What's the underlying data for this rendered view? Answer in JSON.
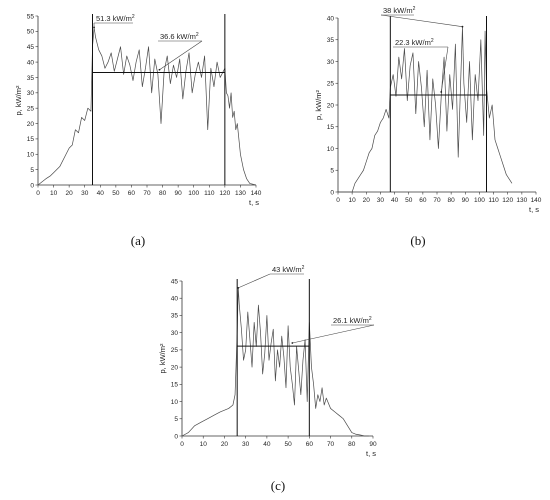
{
  "chart_data": [
    {
      "type": "line",
      "panel_label": "(a)",
      "xlabel": "t, s",
      "ylabel": "p, kW/m²",
      "xlim": [
        0,
        140
      ],
      "ylim": [
        0,
        55
      ],
      "xticks": [
        0,
        10,
        20,
        30,
        40,
        50,
        60,
        70,
        80,
        90,
        100,
        110,
        120,
        130,
        140
      ],
      "yticks": [
        0,
        5,
        10,
        15,
        20,
        25,
        30,
        35,
        40,
        45,
        50,
        55
      ],
      "window": [
        35,
        120
      ],
      "mean": 36.6,
      "annotations": [
        {
          "text": "51.3 kW/m",
          "sup": "2",
          "points_to": [
            36,
            51.3
          ]
        },
        {
          "text": "36.6 kW/m",
          "sup": "2",
          "points_to": [
            78,
            37.5
          ]
        }
      ],
      "series": [
        {
          "x": [
            0,
            5,
            8,
            10,
            14,
            18,
            20,
            22,
            24,
            26,
            28,
            30,
            32,
            34,
            35,
            36,
            37,
            39,
            41,
            43,
            45,
            47,
            49,
            51,
            53,
            55,
            57,
            59,
            61,
            63,
            65,
            67,
            69,
            71,
            73,
            75,
            77,
            79,
            81,
            83,
            85,
            87,
            89,
            91,
            93,
            95,
            97,
            99,
            101,
            103,
            105,
            107,
            109,
            111,
            113,
            115,
            117,
            119,
            120,
            121,
            122,
            123,
            124,
            125,
            126,
            127,
            128,
            130,
            132,
            134,
            136,
            140
          ],
          "y": [
            0,
            2,
            3,
            4,
            6,
            10,
            12,
            13,
            18,
            17,
            22,
            21,
            25,
            24,
            45,
            51.3,
            48,
            44,
            42,
            38,
            40,
            43,
            37,
            41,
            45,
            36,
            42,
            39,
            34,
            40,
            44,
            32,
            38,
            45,
            30,
            41,
            36,
            20,
            37,
            42,
            33,
            39,
            35,
            41,
            28,
            37,
            43,
            30,
            36,
            40,
            35,
            42,
            18,
            38,
            32,
            40,
            35,
            37,
            38,
            30,
            29,
            25,
            30,
            22,
            24,
            18,
            20,
            10,
            5,
            2,
            0.5,
            0
          ]
        }
      ]
    },
    {
      "type": "line",
      "panel_label": "(b)",
      "xlabel": "t, s",
      "ylabel": "p, kW/m²",
      "xlim": [
        0,
        140
      ],
      "ylim": [
        0,
        40
      ],
      "xticks": [
        0,
        10,
        20,
        30,
        40,
        50,
        60,
        70,
        80,
        90,
        100,
        110,
        120,
        130,
        140
      ],
      "yticks": [
        0,
        5,
        10,
        15,
        20,
        25,
        30,
        35,
        40
      ],
      "window": [
        37,
        105
      ],
      "mean": 22.3,
      "annotations": [
        {
          "text": "38 kW/m",
          "sup": "2",
          "points_to": [
            88,
            38
          ]
        },
        {
          "text": "22.3 kW/m",
          "sup": "2",
          "points_to": [
            73,
            23
          ]
        }
      ],
      "series": [
        {
          "x": [
            0,
            3,
            6,
            9,
            10,
            12,
            14,
            16,
            18,
            20,
            22,
            24,
            26,
            28,
            30,
            32,
            34,
            36,
            37,
            39,
            41,
            43,
            45,
            47,
            49,
            51,
            53,
            55,
            57,
            59,
            61,
            63,
            65,
            67,
            69,
            71,
            73,
            75,
            77,
            79,
            81,
            83,
            85,
            87,
            88,
            89,
            91,
            93,
            95,
            97,
            99,
            101,
            103,
            104,
            105,
            107,
            109,
            111,
            113,
            115,
            117,
            119,
            121,
            123
          ],
          "y": [
            0,
            0,
            0,
            0,
            0,
            2,
            3,
            4,
            5,
            7,
            9,
            10,
            13,
            14,
            16,
            17,
            19,
            17,
            24,
            27,
            22,
            31,
            26,
            33,
            21,
            29,
            32,
            18,
            30,
            24,
            15,
            28,
            12,
            26,
            20,
            10,
            22,
            31,
            14,
            27,
            19,
            34,
            8,
            28,
            38,
            25,
            16,
            30,
            12,
            27,
            21,
            35,
            13,
            37,
            24,
            17,
            20,
            12,
            10,
            8,
            6,
            4,
            3,
            2
          ]
        }
      ]
    },
    {
      "type": "line",
      "panel_label": "(c)",
      "xlabel": "t, s",
      "ylabel": "p, kW/m²",
      "xlim": [
        0,
        90
      ],
      "ylim": [
        0,
        45
      ],
      "xticks": [
        0,
        10,
        20,
        30,
        40,
        50,
        60,
        70,
        80,
        90
      ],
      "yticks": [
        0,
        5,
        10,
        15,
        20,
        25,
        30,
        35,
        40,
        45
      ],
      "window": [
        26,
        60
      ],
      "mean": 26.1,
      "annotations": [
        {
          "text": "43 kW/m",
          "sup": "2",
          "points_to": [
            26.5,
            43
          ]
        },
        {
          "text": "26.1 kW/m",
          "sup": "2",
          "points_to": [
            52,
            27
          ]
        }
      ],
      "series": [
        {
          "x": [
            0,
            3,
            6,
            9,
            12,
            15,
            18,
            20,
            22,
            24,
            25,
            26,
            26.5,
            27,
            28,
            29,
            30,
            31,
            32,
            33,
            34,
            35,
            36,
            37,
            38,
            39,
            40,
            41,
            42,
            43,
            44,
            45,
            46,
            47,
            48,
            49,
            50,
            51,
            52,
            53,
            54,
            55,
            56,
            57,
            58,
            59,
            60,
            61,
            62,
            63,
            64,
            65,
            66,
            67,
            68,
            70,
            72,
            74,
            76,
            78,
            80,
            82,
            84,
            86,
            88
          ],
          "y": [
            0,
            1,
            3,
            4,
            5,
            6,
            7,
            7.5,
            8,
            9,
            12,
            30,
            43,
            38,
            31,
            22,
            25,
            36,
            28,
            20,
            33,
            26,
            38,
            30,
            18,
            24,
            35,
            22,
            27,
            31,
            16,
            25,
            20,
            29,
            23,
            14,
            32,
            20,
            15,
            9,
            26,
            19,
            12,
            22,
            28,
            10,
            33,
            20,
            15,
            8,
            12,
            10,
            14,
            9,
            11,
            8,
            7,
            6,
            5,
            3,
            1,
            0.5,
            0.3,
            0,
            0
          ]
        }
      ]
    }
  ]
}
